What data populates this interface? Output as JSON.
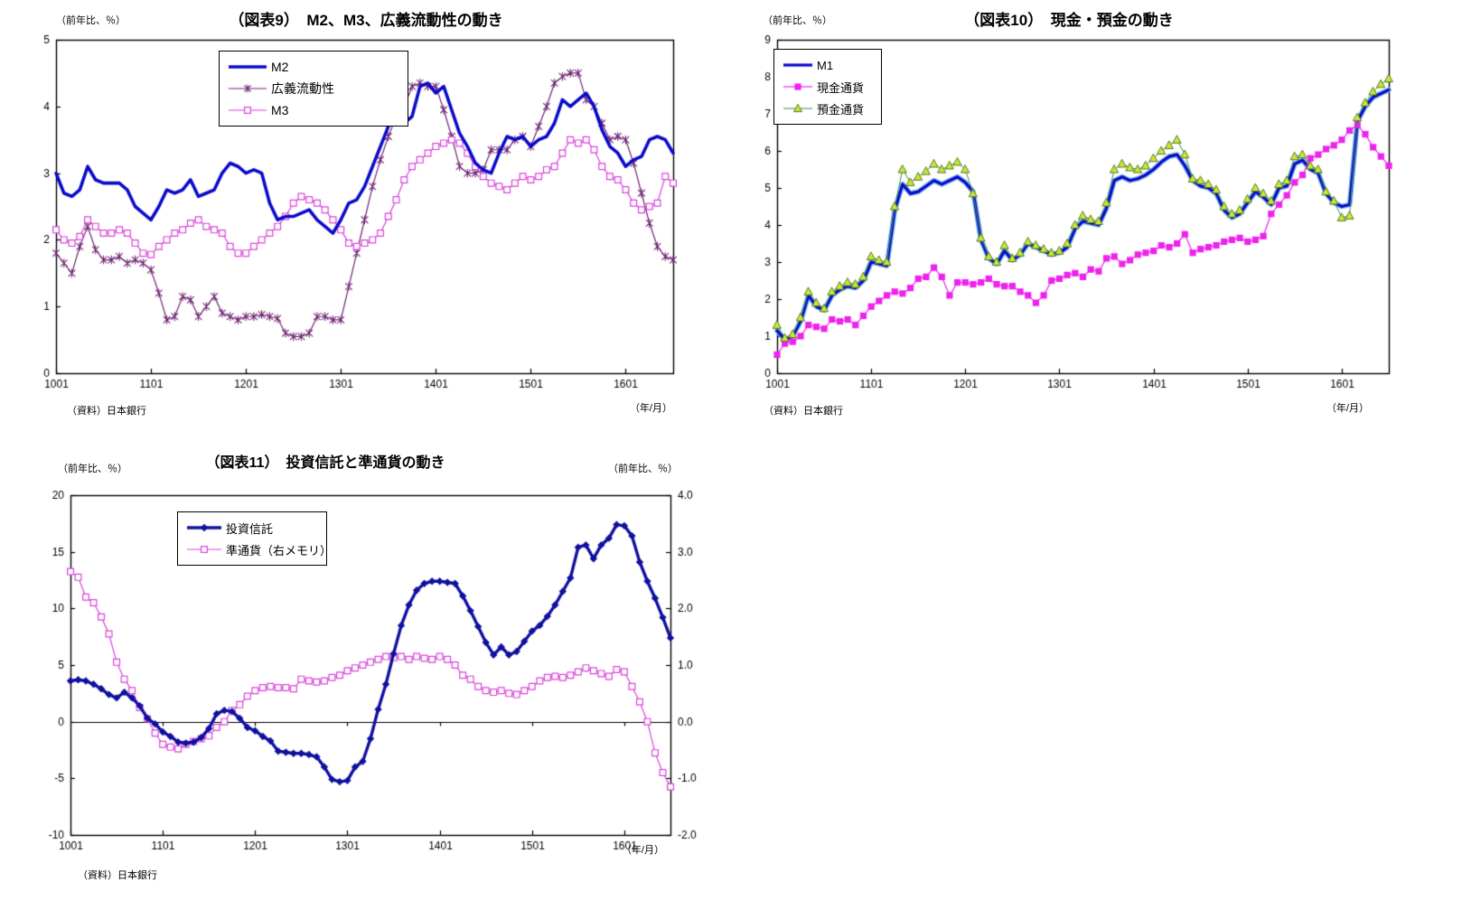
{
  "page": {
    "background": "#ffffff"
  },
  "chart_data": [
    {
      "type": "line",
      "title": "（図表9）　M2、M3、広義流動性の動き",
      "note_left": "（前年比、％）",
      "source": "（資料）日本銀行",
      "x_unit": "（年/月）",
      "x_tick_labels": [
        "1001",
        "1101",
        "1201",
        "1301",
        "1401",
        "1501",
        "1601"
      ],
      "x_tick_interval": 12,
      "n_points": 79,
      "grid": "off",
      "legend_position": "top-left-inside",
      "y_axis": {
        "min": 0,
        "max": 5,
        "tick_labels": [
          "5",
          "4",
          "3",
          "2",
          "1",
          "0"
        ]
      },
      "series": [
        {
          "name": "広義流動性",
          "axis": "left",
          "color": "#6f2573",
          "width": 1.2,
          "marker": "star",
          "values": [
            1.8,
            1.65,
            1.5,
            1.9,
            2.2,
            1.85,
            1.7,
            1.7,
            1.75,
            1.65,
            1.7,
            1.65,
            1.55,
            1.2,
            0.8,
            0.85,
            1.15,
            1.1,
            0.85,
            1.0,
            1.15,
            0.9,
            0.85,
            0.8,
            0.85,
            0.85,
            0.88,
            0.85,
            0.82,
            0.6,
            0.55,
            0.55,
            0.6,
            0.85,
            0.85,
            0.8,
            0.8,
            1.3,
            1.8,
            2.3,
            2.8,
            3.2,
            3.55,
            3.85,
            4.0,
            4.3,
            4.35,
            4.3,
            4.3,
            3.95,
            3.55,
            3.1,
            3.0,
            3.0,
            3.05,
            3.35,
            3.35,
            3.35,
            3.5,
            3.55,
            3.4,
            3.7,
            4.0,
            4.35,
            4.45,
            4.5,
            4.5,
            4.1,
            4.0,
            3.75,
            3.5,
            3.55,
            3.5,
            3.15,
            2.7,
            2.25,
            1.9,
            1.75,
            1.7
          ]
        },
        {
          "name": "M3",
          "axis": "left",
          "color": "#d944d9",
          "width": 1.2,
          "marker": "square-open",
          "values": [
            2.15,
            2.0,
            1.95,
            2.05,
            2.3,
            2.2,
            2.1,
            2.1,
            2.15,
            2.1,
            1.95,
            1.8,
            1.78,
            1.9,
            2.0,
            2.1,
            2.15,
            2.25,
            2.3,
            2.2,
            2.15,
            2.1,
            1.9,
            1.8,
            1.8,
            1.9,
            2.0,
            2.1,
            2.2,
            2.35,
            2.55,
            2.65,
            2.6,
            2.55,
            2.45,
            2.3,
            2.15,
            1.95,
            1.9,
            1.95,
            2.0,
            2.1,
            2.35,
            2.6,
            2.9,
            3.1,
            3.2,
            3.3,
            3.4,
            3.45,
            3.5,
            3.45,
            3.3,
            3.1,
            2.95,
            2.85,
            2.8,
            2.75,
            2.85,
            2.95,
            2.9,
            2.95,
            3.05,
            3.1,
            3.3,
            3.5,
            3.45,
            3.5,
            3.35,
            3.1,
            2.95,
            2.9,
            2.75,
            2.55,
            2.45,
            2.5,
            2.55,
            2.95,
            2.85
          ]
        },
        {
          "name": "M2",
          "axis": "left",
          "color": "#0a0acc",
          "width": 3.6,
          "marker": "none",
          "values": [
            3.0,
            2.7,
            2.65,
            2.75,
            3.1,
            2.9,
            2.85,
            2.85,
            2.85,
            2.75,
            2.5,
            2.4,
            2.3,
            2.5,
            2.75,
            2.7,
            2.75,
            2.9,
            2.65,
            2.7,
            2.75,
            3.0,
            3.15,
            3.1,
            3.0,
            3.05,
            3.0,
            2.55,
            2.3,
            2.35,
            2.35,
            2.4,
            2.45,
            2.3,
            2.2,
            2.1,
            2.3,
            2.55,
            2.6,
            2.8,
            3.1,
            3.4,
            3.7,
            3.9,
            3.75,
            3.85,
            4.3,
            4.35,
            4.2,
            4.3,
            3.95,
            3.6,
            3.4,
            3.15,
            3.05,
            3.0,
            3.3,
            3.55,
            3.5,
            3.55,
            3.4,
            3.5,
            3.55,
            3.75,
            4.1,
            4.0,
            4.1,
            4.2,
            4.0,
            3.65,
            3.4,
            3.3,
            3.1,
            3.2,
            3.25,
            3.5,
            3.55,
            3.5,
            3.3
          ]
        }
      ],
      "legend_order": [
        "M2",
        "広義流動性",
        "M3"
      ]
    },
    {
      "type": "line",
      "title": "（図表10）　現金・預金の動き",
      "note_left": "（前年比、％）",
      "source": "（資料）日本銀行",
      "x_unit": "（年/月）",
      "x_tick_labels": [
        "1001",
        "1101",
        "1201",
        "1301",
        "1401",
        "1501",
        "1601"
      ],
      "x_tick_interval": 12,
      "n_points": 79,
      "grid": "off",
      "legend_position": "top-left-inside",
      "y_axis": {
        "min": 0,
        "max": 9,
        "tick_labels": [
          "9",
          "8",
          "7",
          "6",
          "5",
          "4",
          "3",
          "2",
          "1",
          "0"
        ]
      },
      "series": [
        {
          "name": "M1",
          "axis": "left",
          "color": "#0a0acc",
          "halo": "#7fb8e6",
          "width": 3.2,
          "marker": "none",
          "values": [
            1.15,
            0.9,
            1.0,
            1.4,
            2.1,
            1.8,
            1.7,
            2.1,
            2.25,
            2.35,
            2.3,
            2.5,
            3.0,
            2.95,
            2.9,
            4.4,
            5.1,
            4.85,
            4.9,
            5.05,
            5.2,
            5.1,
            5.2,
            5.3,
            5.15,
            4.9,
            3.6,
            3.1,
            2.95,
            3.3,
            3.05,
            3.2,
            3.5,
            3.4,
            3.3,
            3.2,
            3.25,
            3.4,
            3.9,
            4.1,
            4.05,
            4.0,
            4.45,
            5.2,
            5.3,
            5.2,
            5.25,
            5.35,
            5.5,
            5.7,
            5.85,
            5.9,
            5.6,
            5.2,
            5.05,
            5.0,
            4.85,
            4.4,
            4.2,
            4.3,
            4.6,
            4.9,
            4.75,
            4.55,
            5.0,
            5.05,
            5.65,
            5.75,
            5.5,
            5.4,
            4.85,
            4.6,
            4.5,
            4.55,
            6.8,
            7.2,
            7.45,
            7.55,
            7.65
          ]
        },
        {
          "name": "現金通貨",
          "axis": "left",
          "color": "#ee22ee",
          "width": 1.2,
          "marker": "square-filled",
          "values": [
            0.5,
            0.8,
            0.85,
            1.0,
            1.3,
            1.25,
            1.2,
            1.45,
            1.4,
            1.45,
            1.3,
            1.55,
            1.8,
            1.95,
            2.1,
            2.2,
            2.15,
            2.3,
            2.55,
            2.6,
            2.85,
            2.6,
            2.1,
            2.45,
            2.45,
            2.4,
            2.45,
            2.55,
            2.4,
            2.35,
            2.35,
            2.2,
            2.1,
            1.9,
            2.1,
            2.5,
            2.55,
            2.65,
            2.7,
            2.6,
            2.8,
            2.75,
            3.1,
            3.15,
            2.95,
            3.05,
            3.2,
            3.25,
            3.3,
            3.45,
            3.4,
            3.5,
            3.75,
            3.25,
            3.35,
            3.4,
            3.45,
            3.55,
            3.6,
            3.65,
            3.55,
            3.6,
            3.7,
            4.3,
            4.55,
            4.8,
            5.15,
            5.35,
            5.8,
            5.9,
            6.05,
            6.15,
            6.3,
            6.55,
            6.7,
            6.45,
            6.1,
            5.85,
            5.6
          ]
        },
        {
          "name": "預金通貨",
          "axis": "left",
          "color": "#35915a",
          "width": 1.0,
          "marker": "triangle",
          "marker_fill": "#cbe63a",
          "marker_stroke": "#507a14",
          "values": [
            1.3,
            0.95,
            1.05,
            1.5,
            2.2,
            1.9,
            1.75,
            2.2,
            2.35,
            2.45,
            2.4,
            2.6,
            3.15,
            3.05,
            3.0,
            4.5,
            5.5,
            5.15,
            5.3,
            5.45,
            5.65,
            5.5,
            5.6,
            5.7,
            5.5,
            4.85,
            3.65,
            3.15,
            3.0,
            3.45,
            3.1,
            3.25,
            3.55,
            3.45,
            3.35,
            3.25,
            3.3,
            3.5,
            4.0,
            4.25,
            4.15,
            4.1,
            4.6,
            5.5,
            5.65,
            5.55,
            5.5,
            5.6,
            5.8,
            6.0,
            6.15,
            6.3,
            5.9,
            5.25,
            5.2,
            5.1,
            4.95,
            4.5,
            4.3,
            4.4,
            4.7,
            5.0,
            4.85,
            4.65,
            5.1,
            5.2,
            5.85,
            5.9,
            5.6,
            5.5,
            4.9,
            4.65,
            4.2,
            4.25,
            6.9,
            7.3,
            7.6,
            7.8,
            7.95
          ]
        }
      ],
      "legend_order": [
        "M1",
        "現金通貨",
        "預金通貨"
      ]
    },
    {
      "type": "line",
      "title": "（図表11）　投資信託と準通貨の動き",
      "note_left": "（前年比、％）",
      "note_right": "（前年比、％）",
      "source": "（資料）日本銀行",
      "x_unit": "（年/月）",
      "x_tick_labels": [
        "1001",
        "1101",
        "1201",
        "1301",
        "1401",
        "1501",
        "1601"
      ],
      "x_tick_interval": 12,
      "n_points": 79,
      "grid": "off",
      "zero_line": true,
      "legend_position": "top-left-inside",
      "y_axis": {
        "min": -10,
        "max": 20,
        "tick_labels": [
          "20",
          "15",
          "10",
          "5",
          "0",
          "-5",
          "-10"
        ]
      },
      "y_axis_right": {
        "min": -2.0,
        "max": 4.0,
        "tick_labels": [
          "4.0",
          "3.0",
          "2.0",
          "1.0",
          "0.0",
          "-1.0",
          "-2.0"
        ]
      },
      "series": [
        {
          "name": "準通貨（右メモリ）",
          "axis": "right",
          "color": "#d944d9",
          "width": 1.2,
          "marker": "square-open",
          "values": [
            2.65,
            2.55,
            2.2,
            2.1,
            1.85,
            1.55,
            1.05,
            0.75,
            0.55,
            0.25,
            0.05,
            -0.2,
            -0.4,
            -0.45,
            -0.48,
            -0.4,
            -0.35,
            -0.3,
            -0.25,
            -0.1,
            0.0,
            0.2,
            0.3,
            0.45,
            0.55,
            0.6,
            0.62,
            0.6,
            0.6,
            0.58,
            0.75,
            0.72,
            0.7,
            0.72,
            0.78,
            0.82,
            0.9,
            0.95,
            1.0,
            1.05,
            1.1,
            1.15,
            1.13,
            1.15,
            1.1,
            1.15,
            1.12,
            1.1,
            1.15,
            1.1,
            1.0,
            0.82,
            0.75,
            0.62,
            0.55,
            0.52,
            0.55,
            0.5,
            0.48,
            0.55,
            0.62,
            0.72,
            0.78,
            0.8,
            0.78,
            0.82,
            0.88,
            0.95,
            0.9,
            0.85,
            0.8,
            0.92,
            0.88,
            0.62,
            0.35,
            0.0,
            -0.55,
            -0.9,
            -1.15
          ]
        },
        {
          "name": "投資信託",
          "axis": "left",
          "color": "#1010a0",
          "width": 3.4,
          "marker": "diamond",
          "values": [
            3.6,
            3.7,
            3.6,
            3.3,
            2.9,
            2.4,
            2.1,
            2.6,
            2.1,
            1.4,
            0.3,
            -0.2,
            -0.9,
            -1.3,
            -1.8,
            -1.9,
            -1.8,
            -1.4,
            -0.6,
            0.7,
            1.0,
            0.9,
            0.3,
            -0.5,
            -0.8,
            -1.3,
            -1.7,
            -2.6,
            -2.7,
            -2.8,
            -2.8,
            -2.9,
            -3.1,
            -4.0,
            -5.1,
            -5.3,
            -5.2,
            -4.0,
            -3.5,
            -1.5,
            1.1,
            3.3,
            6.0,
            8.5,
            10.3,
            11.6,
            12.2,
            12.4,
            12.4,
            12.3,
            12.2,
            11.1,
            9.8,
            8.4,
            7.0,
            5.9,
            6.6,
            5.9,
            6.2,
            7.1,
            8.0,
            8.5,
            9.3,
            10.3,
            11.5,
            12.7,
            15.4,
            15.6,
            14.4,
            15.6,
            16.2,
            17.4,
            17.3,
            16.4,
            14.1,
            12.4,
            10.9,
            9.2,
            7.4
          ]
        }
      ],
      "legend_order": [
        "投資信託",
        "準通貨（右メモリ）"
      ]
    }
  ]
}
